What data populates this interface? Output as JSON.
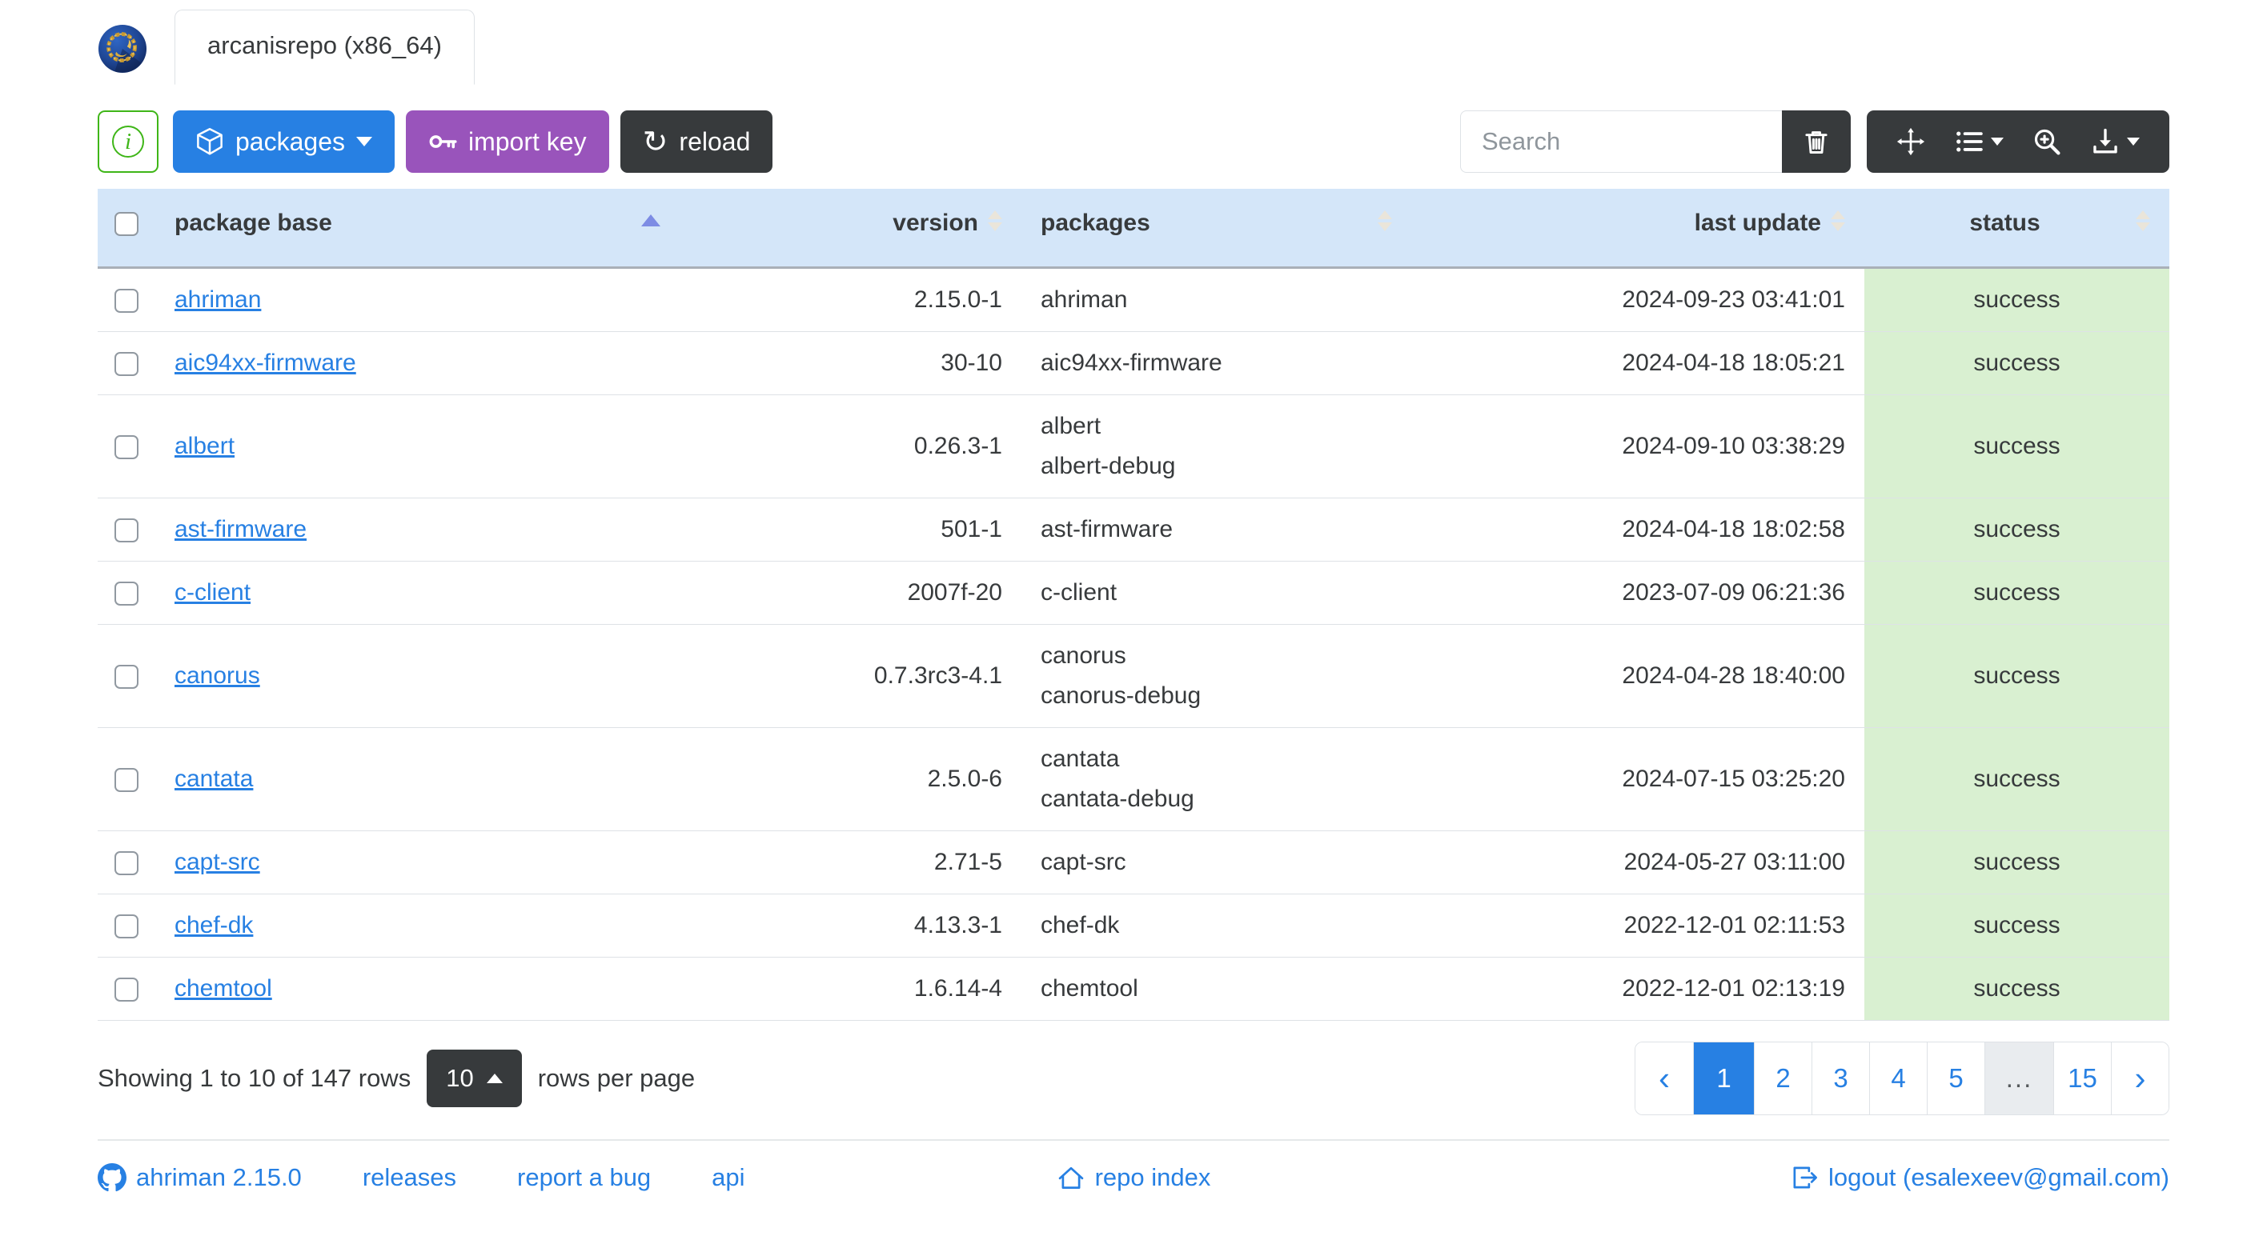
{
  "header": {
    "tab_label": "arcanisrepo (x86_64)"
  },
  "toolbar": {
    "info_icon_glyph": "i",
    "packages_label": "packages",
    "import_key_label": "import key",
    "reload_label": "reload",
    "reload_icon_glyph": "↻",
    "search_placeholder": "Search",
    "search_value": "",
    "icons": [
      "trash-icon",
      "arrows-move-icon",
      "columns-list-icon",
      "zoom-in-icon",
      "download-icon"
    ]
  },
  "table": {
    "columns": [
      "package base",
      "version",
      "packages",
      "last update",
      "status"
    ],
    "sort": {
      "column": "package base",
      "direction": "asc"
    },
    "rows": [
      {
        "base": "ahriman",
        "version": "2.15.0-1",
        "packages": [
          "ahriman"
        ],
        "last_update": "2024-09-23 03:41:01",
        "status": "success"
      },
      {
        "base": "aic94xx-firmware",
        "version": "30-10",
        "packages": [
          "aic94xx-firmware"
        ],
        "last_update": "2024-04-18 18:05:21",
        "status": "success"
      },
      {
        "base": "albert",
        "version": "0.26.3-1",
        "packages": [
          "albert",
          "albert-debug"
        ],
        "last_update": "2024-09-10 03:38:29",
        "status": "success"
      },
      {
        "base": "ast-firmware",
        "version": "501-1",
        "packages": [
          "ast-firmware"
        ],
        "last_update": "2024-04-18 18:02:58",
        "status": "success"
      },
      {
        "base": "c-client",
        "version": "2007f-20",
        "packages": [
          "c-client"
        ],
        "last_update": "2023-07-09 06:21:36",
        "status": "success"
      },
      {
        "base": "canorus",
        "version": "0.7.3rc3-4.1",
        "packages": [
          "canorus",
          "canorus-debug"
        ],
        "last_update": "2024-04-28 18:40:00",
        "status": "success"
      },
      {
        "base": "cantata",
        "version": "2.5.0-6",
        "packages": [
          "cantata",
          "cantata-debug"
        ],
        "last_update": "2024-07-15 03:25:20",
        "status": "success"
      },
      {
        "base": "capt-src",
        "version": "2.71-5",
        "packages": [
          "capt-src"
        ],
        "last_update": "2024-05-27 03:11:00",
        "status": "success"
      },
      {
        "base": "chef-dk",
        "version": "4.13.3-1",
        "packages": [
          "chef-dk"
        ],
        "last_update": "2022-12-01 02:11:53",
        "status": "success"
      },
      {
        "base": "chemtool",
        "version": "1.6.14-4",
        "packages": [
          "chemtool"
        ],
        "last_update": "2022-12-01 02:13:19",
        "status": "success"
      }
    ]
  },
  "pagination": {
    "summary_prefix": "Showing 1 to 10 of 147 rows",
    "page_size": "10",
    "summary_suffix": "rows per page",
    "prev_label": "‹",
    "next_label": "›",
    "pages": [
      "1",
      "2",
      "3",
      "4",
      "5",
      "...",
      "15"
    ],
    "active_page": "1"
  },
  "footer": {
    "version_link": "ahriman 2.15.0",
    "releases_link": "releases",
    "report_bug_link": "report a bug",
    "api_link": "api",
    "repo_index_link": "repo index",
    "logout_link": "logout (esalexeev@gmail.com)"
  },
  "colors": {
    "primary": "#2780e3",
    "info_purple": "#9954bb",
    "secondary_dark": "#373a3c",
    "success_green": "#3fb618",
    "table_header_bg": "#d4e6f9",
    "status_success_bg": "#d9f0d1",
    "sort_active_arrow": "#7d8ce4"
  }
}
